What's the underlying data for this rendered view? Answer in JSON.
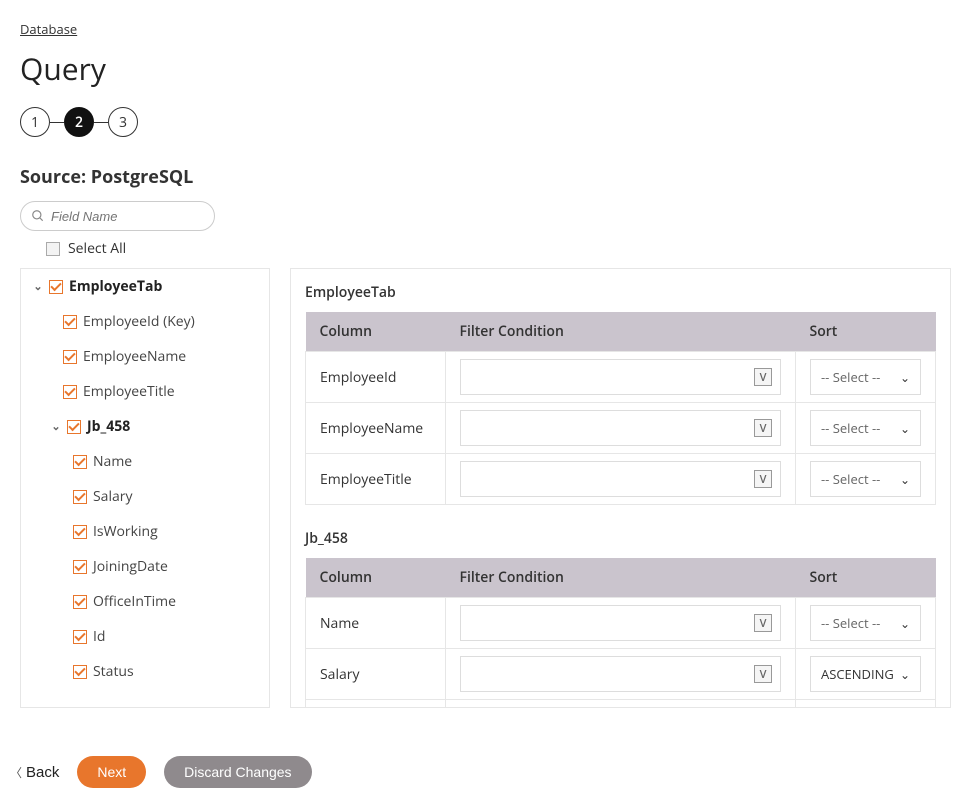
{
  "breadcrumb": "Database",
  "page_title": "Query",
  "stepper": {
    "steps": [
      "1",
      "2",
      "3"
    ],
    "active_index": 1
  },
  "source_label": "Source: PostgreSQL",
  "search": {
    "placeholder": "Field Name"
  },
  "select_all_label": "Select All",
  "tree": [
    {
      "label": "EmployeeTab",
      "level": 0,
      "checked": true,
      "expandable": true,
      "expanded": true
    },
    {
      "label": "EmployeeId (Key)",
      "level": 1,
      "checked": true
    },
    {
      "label": "EmployeeName",
      "level": 1,
      "checked": true
    },
    {
      "label": "EmployeeTitle",
      "level": 1,
      "checked": true
    },
    {
      "label": "Jb_458",
      "level": 1,
      "checked": true,
      "expandable": true,
      "expanded": true,
      "header": true
    },
    {
      "label": "Name",
      "level": 2,
      "checked": true
    },
    {
      "label": "Salary",
      "level": 2,
      "checked": true
    },
    {
      "label": "IsWorking",
      "level": 2,
      "checked": true
    },
    {
      "label": "JoiningDate",
      "level": 2,
      "checked": true
    },
    {
      "label": "OfficeInTime",
      "level": 2,
      "checked": true
    },
    {
      "label": "Id",
      "level": 2,
      "checked": true
    },
    {
      "label": "Status",
      "level": 2,
      "checked": true
    }
  ],
  "headers": {
    "column": "Column",
    "filter": "Filter Condition",
    "sort": "Sort"
  },
  "select_placeholder": "-- Select --",
  "tables": [
    {
      "title": "EmployeeTab",
      "rows": [
        {
          "column": "EmployeeId",
          "sort": ""
        },
        {
          "column": "EmployeeName",
          "sort": ""
        },
        {
          "column": "EmployeeTitle",
          "sort": ""
        }
      ]
    },
    {
      "title": "Jb_458",
      "rows": [
        {
          "column": "Name",
          "sort": ""
        },
        {
          "column": "Salary",
          "sort": "ASCENDING"
        },
        {
          "column": "",
          "sort": ""
        }
      ]
    }
  ],
  "footer": {
    "back": "Back",
    "next": "Next",
    "discard": "Discard Changes"
  },
  "colors": {
    "accent": "#e8762c",
    "header_bg": "#cac4cd"
  }
}
